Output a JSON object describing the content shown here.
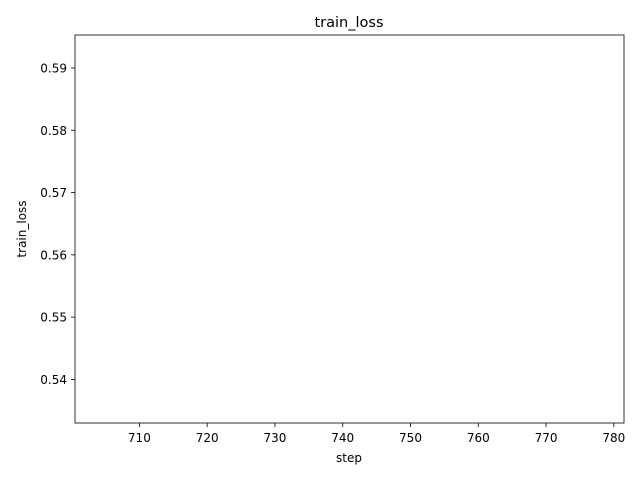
{
  "chart_data": {
    "type": "line",
    "title": "train_loss",
    "xlabel": "step",
    "ylabel": "train_loss",
    "xlim": [
      700.5,
      781.5
    ],
    "ylim": [
      0.533,
      0.5953
    ],
    "xticks": [
      710,
      720,
      730,
      740,
      750,
      760,
      770,
      780
    ],
    "yticks": [
      0.54,
      0.55,
      0.56,
      0.57,
      0.58,
      0.59
    ],
    "grid": false,
    "series": []
  }
}
